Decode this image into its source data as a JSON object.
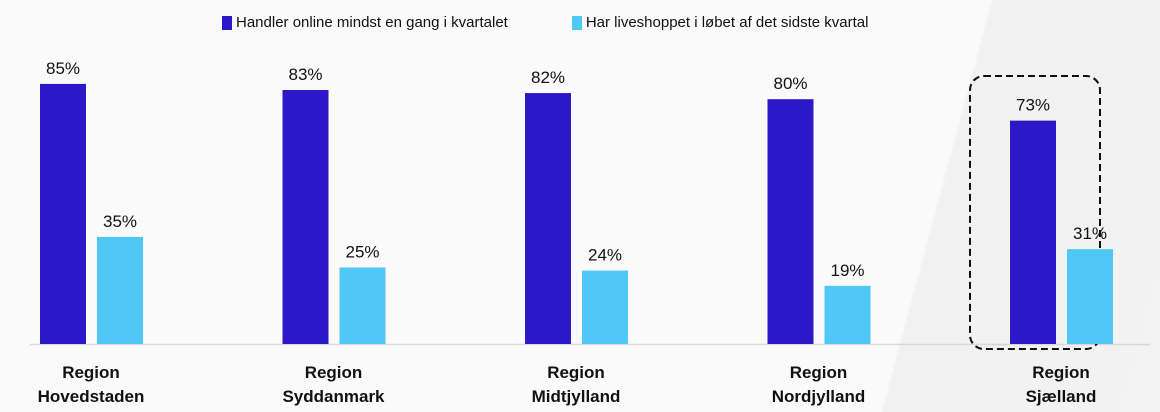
{
  "chart_data": {
    "type": "bar",
    "title": "",
    "xlabel": "",
    "ylabel": "",
    "ylim": [
      0,
      100
    ],
    "grid": false,
    "legend_position": "top",
    "categories": [
      [
        "Region",
        "Hovedstaden"
      ],
      [
        "Region",
        "Syddanmark"
      ],
      [
        "Region",
        "Midtjylland"
      ],
      [
        "Region",
        "Nordjylland"
      ],
      [
        "Region",
        "Sjælland"
      ]
    ],
    "series": [
      {
        "name": "Handler online mindst en gang i kvartalet",
        "color": "#2b18c8",
        "values": [
          85,
          83,
          82,
          80,
          73
        ],
        "labels": [
          "85%",
          "83%",
          "82%",
          "80%",
          "73%"
        ]
      },
      {
        "name": "Har liveshoppet i løbet af det sidste kvartal",
        "color": "#4fc8f8",
        "values": [
          35,
          25,
          24,
          19,
          31
        ],
        "labels": [
          "35%",
          "25%",
          "24%",
          "19%",
          "31%"
        ]
      }
    ],
    "highlighted_category_index": 4
  }
}
